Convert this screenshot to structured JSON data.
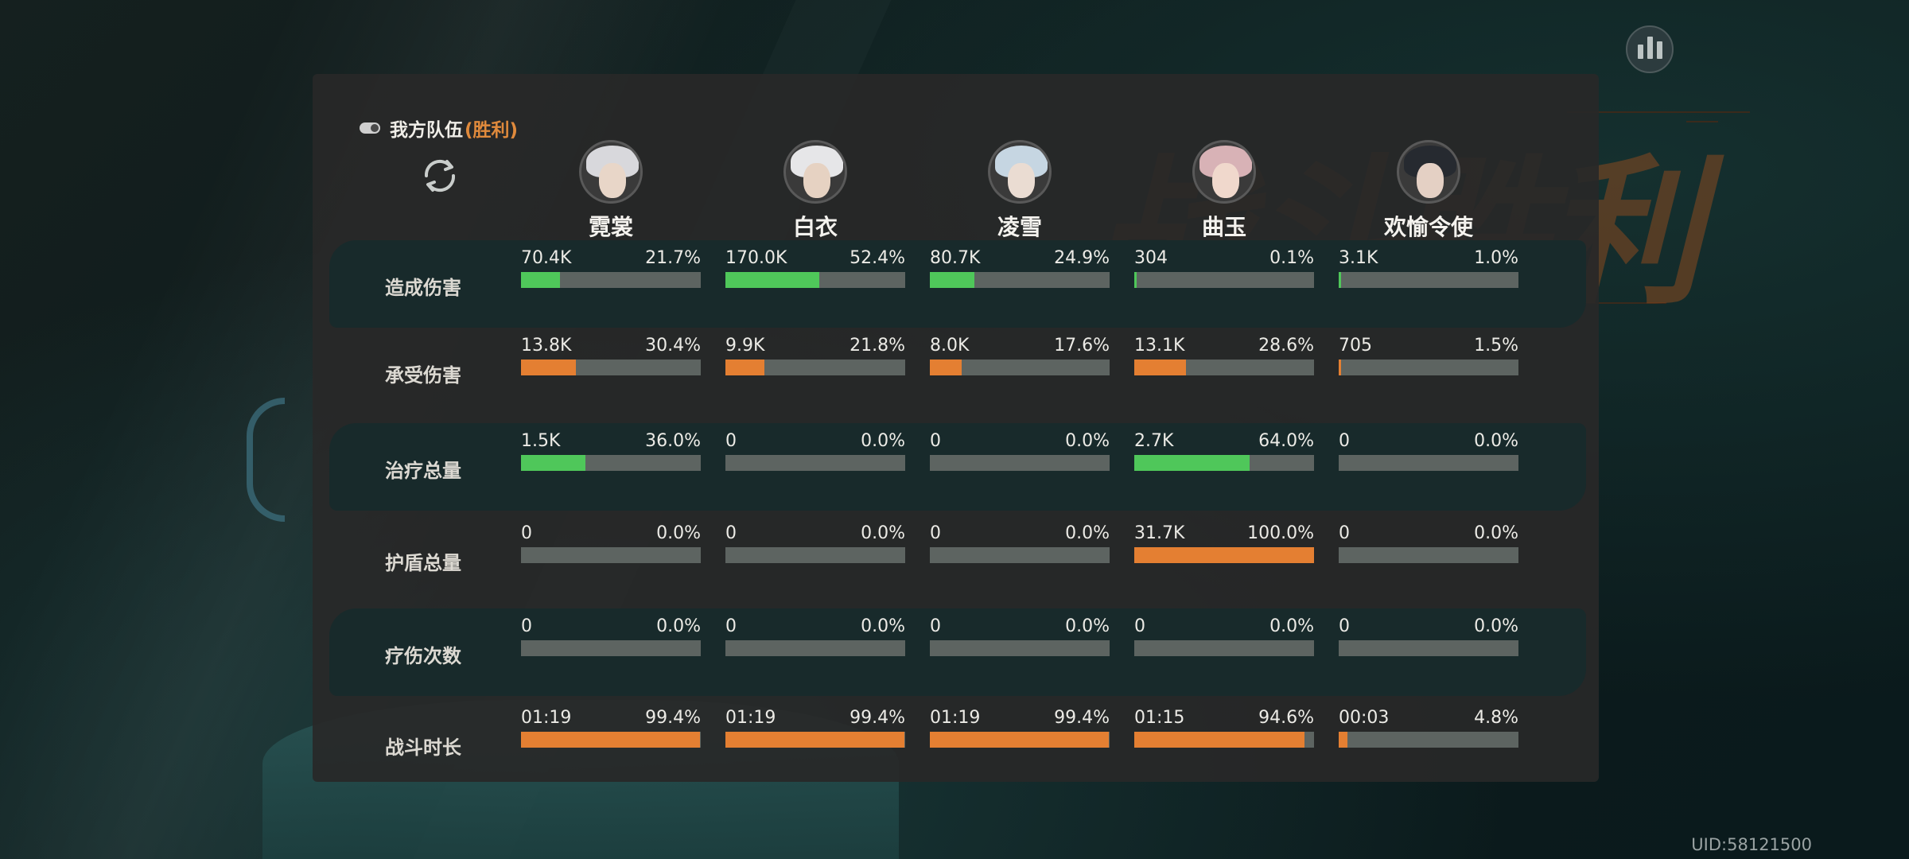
{
  "header": {
    "team_label": "我方队伍",
    "team_result": "(胜利)"
  },
  "background": {
    "victory_banner": "战斗胜利"
  },
  "uid": "UID:58121500",
  "icons": {
    "stats": "bar-chart-icon",
    "toggle": "toggle-icon",
    "refresh": "refresh-icon"
  },
  "colors": {
    "green": "#4fc75a",
    "orange": "#e47f32",
    "accent_result": "#e08a3c",
    "bar_bg": "#5d6461",
    "row_alt": "#182a2b",
    "panel": "#282828"
  },
  "characters": [
    {
      "name": "霓裳"
    },
    {
      "name": "白衣"
    },
    {
      "name": "凌雪"
    },
    {
      "name": "曲玉"
    },
    {
      "name": "欢愉令使"
    }
  ],
  "rows": [
    {
      "label": "造成伤害",
      "color": "green",
      "cells": [
        {
          "value": "70.4K",
          "percent": "21.7%",
          "fill": 0.217
        },
        {
          "value": "170.0K",
          "percent": "52.4%",
          "fill": 0.524
        },
        {
          "value": "80.7K",
          "percent": "24.9%",
          "fill": 0.249
        },
        {
          "value": "304",
          "percent": "0.1%",
          "fill": 0.001
        },
        {
          "value": "3.1K",
          "percent": "1.0%",
          "fill": 0.01
        }
      ]
    },
    {
      "label": "承受伤害",
      "color": "orange",
      "cells": [
        {
          "value": "13.8K",
          "percent": "30.4%",
          "fill": 0.304
        },
        {
          "value": "9.9K",
          "percent": "21.8%",
          "fill": 0.218
        },
        {
          "value": "8.0K",
          "percent": "17.6%",
          "fill": 0.176
        },
        {
          "value": "13.1K",
          "percent": "28.6%",
          "fill": 0.286
        },
        {
          "value": "705",
          "percent": "1.5%",
          "fill": 0.015
        }
      ]
    },
    {
      "label": "治疗总量",
      "color": "green",
      "cells": [
        {
          "value": "1.5K",
          "percent": "36.0%",
          "fill": 0.36
        },
        {
          "value": "0",
          "percent": "0.0%",
          "fill": 0
        },
        {
          "value": "0",
          "percent": "0.0%",
          "fill": 0
        },
        {
          "value": "2.7K",
          "percent": "64.0%",
          "fill": 0.64
        },
        {
          "value": "0",
          "percent": "0.0%",
          "fill": 0
        }
      ]
    },
    {
      "label": "护盾总量",
      "color": "orange",
      "cells": [
        {
          "value": "0",
          "percent": "0.0%",
          "fill": 0
        },
        {
          "value": "0",
          "percent": "0.0%",
          "fill": 0
        },
        {
          "value": "0",
          "percent": "0.0%",
          "fill": 0
        },
        {
          "value": "31.7K",
          "percent": "100.0%",
          "fill": 1.0
        },
        {
          "value": "0",
          "percent": "0.0%",
          "fill": 0
        }
      ]
    },
    {
      "label": "疗伤次数",
      "color": "green",
      "cells": [
        {
          "value": "0",
          "percent": "0.0%",
          "fill": 0
        },
        {
          "value": "0",
          "percent": "0.0%",
          "fill": 0
        },
        {
          "value": "0",
          "percent": "0.0%",
          "fill": 0
        },
        {
          "value": "0",
          "percent": "0.0%",
          "fill": 0
        },
        {
          "value": "0",
          "percent": "0.0%",
          "fill": 0
        }
      ]
    },
    {
      "label": "战斗时长",
      "color": "orange",
      "cells": [
        {
          "value": "01:19",
          "percent": "99.4%",
          "fill": 0.994
        },
        {
          "value": "01:19",
          "percent": "99.4%",
          "fill": 0.994
        },
        {
          "value": "01:19",
          "percent": "99.4%",
          "fill": 0.994
        },
        {
          "value": "01:15",
          "percent": "94.6%",
          "fill": 0.946
        },
        {
          "value": "00:03",
          "percent": "4.8%",
          "fill": 0.048
        }
      ]
    }
  ]
}
